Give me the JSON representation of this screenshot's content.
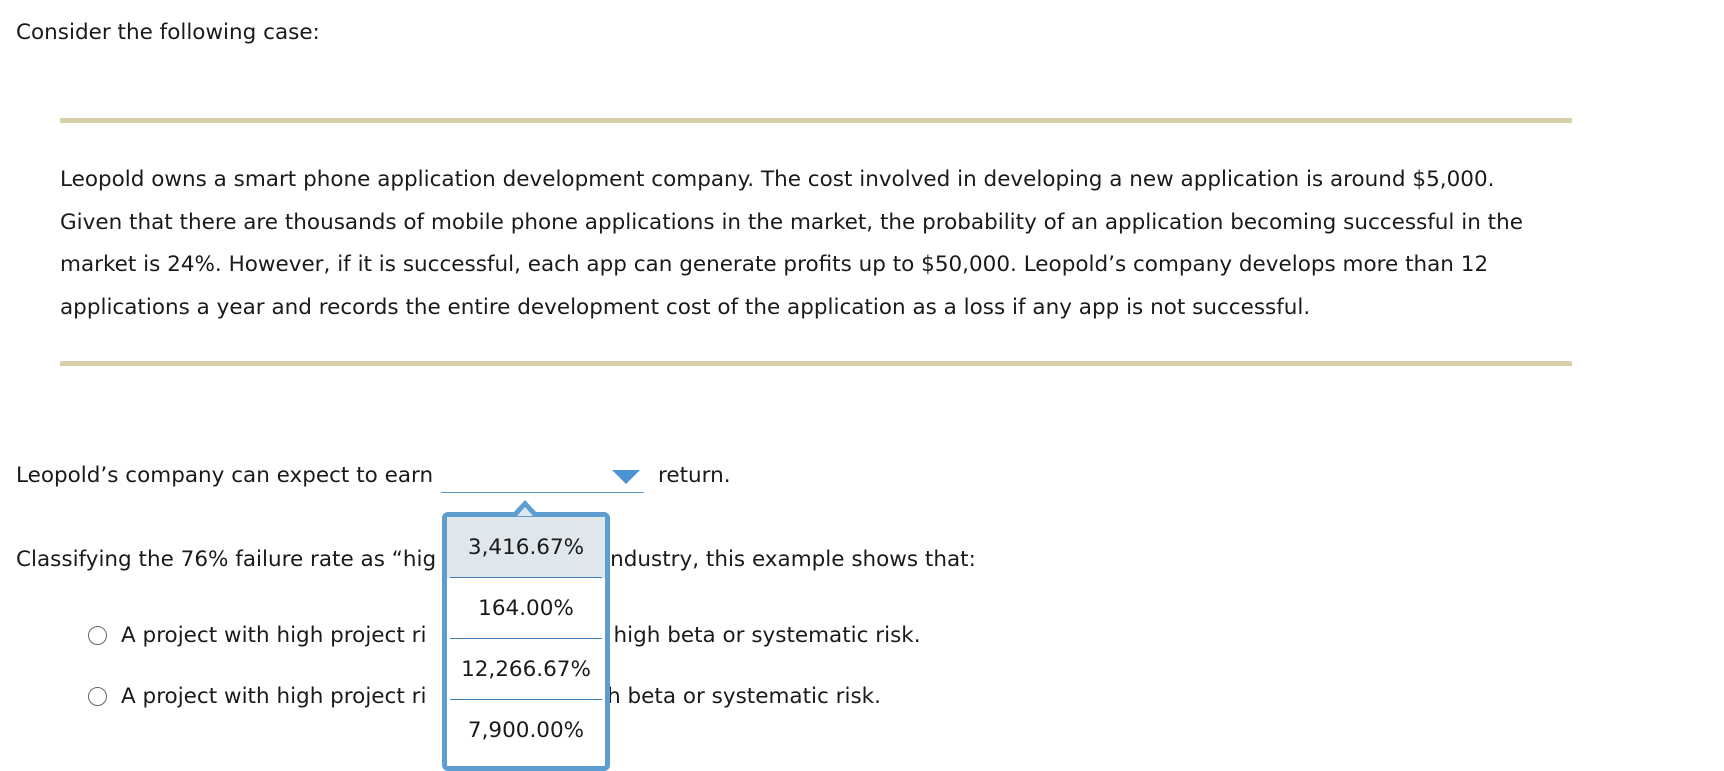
{
  "intro": "Consider the following case:",
  "case": {
    "lines": [
      "Leopold owns a smart phone application development company. The cost involved in developing a new application is around $5,000.",
      "Given that there are thousands of mobile phone applications in the market, the probability of an application becoming successful in the",
      "market is 24%. However, if it is successful, each app can generate profits up to $50,000. Leopold’s company develops more than 12",
      "applications a year and records the entire development cost of the application as a loss if any app is not successful."
    ]
  },
  "question1": {
    "prefix": "Leopold’s company can expect to earn",
    "selected_value": "",
    "suffix": "return.",
    "options": [
      "3,416.67%",
      "164.00%",
      "12,266.67%",
      "7,900.00%"
    ],
    "highlighted_index": 0
  },
  "question2": {
    "text_visible": "Classifying the 76% failure rate as “hig",
    "text_visible_right": "ndustry, this example shows that:",
    "options": [
      {
        "label_left": "A project with high project ri",
        "label_right": "e high beta or systematic risk."
      },
      {
        "label_left": "A project with high project ri",
        "label_right": "gh beta or systematic risk."
      }
    ]
  },
  "colors": {
    "rule": "#d8ceaa",
    "accent": "#5e9dd0",
    "highlight": "#dfe7ec"
  },
  "icons": {
    "caret": "chevron-down-icon",
    "radio": "radio-empty-icon"
  }
}
